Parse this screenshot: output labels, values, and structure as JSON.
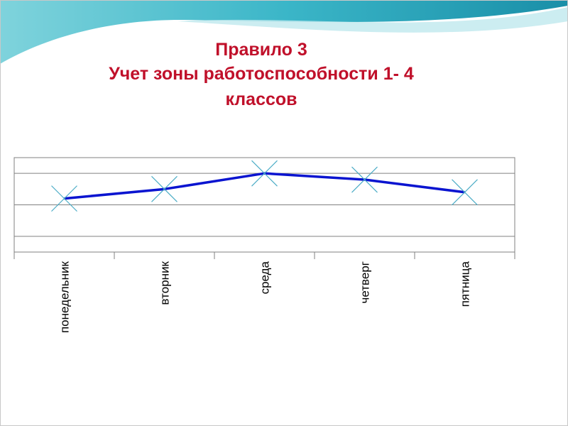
{
  "chart_data": {
    "type": "line",
    "title": [
      "Правило 3",
      "Учет зоны работоспособности 1- 4",
      "классов"
    ],
    "categories": [
      "понедельник",
      "вторник",
      "среда",
      "четверг",
      "пятница"
    ],
    "values": [
      2.2,
      2.5,
      3.0,
      2.8,
      2.4
    ],
    "color": "#0a14d0",
    "marker_color": "#4bacc6",
    "ylim": [
      0.5,
      3.5
    ],
    "yticks": [
      1,
      2,
      3
    ],
    "grid": true
  }
}
